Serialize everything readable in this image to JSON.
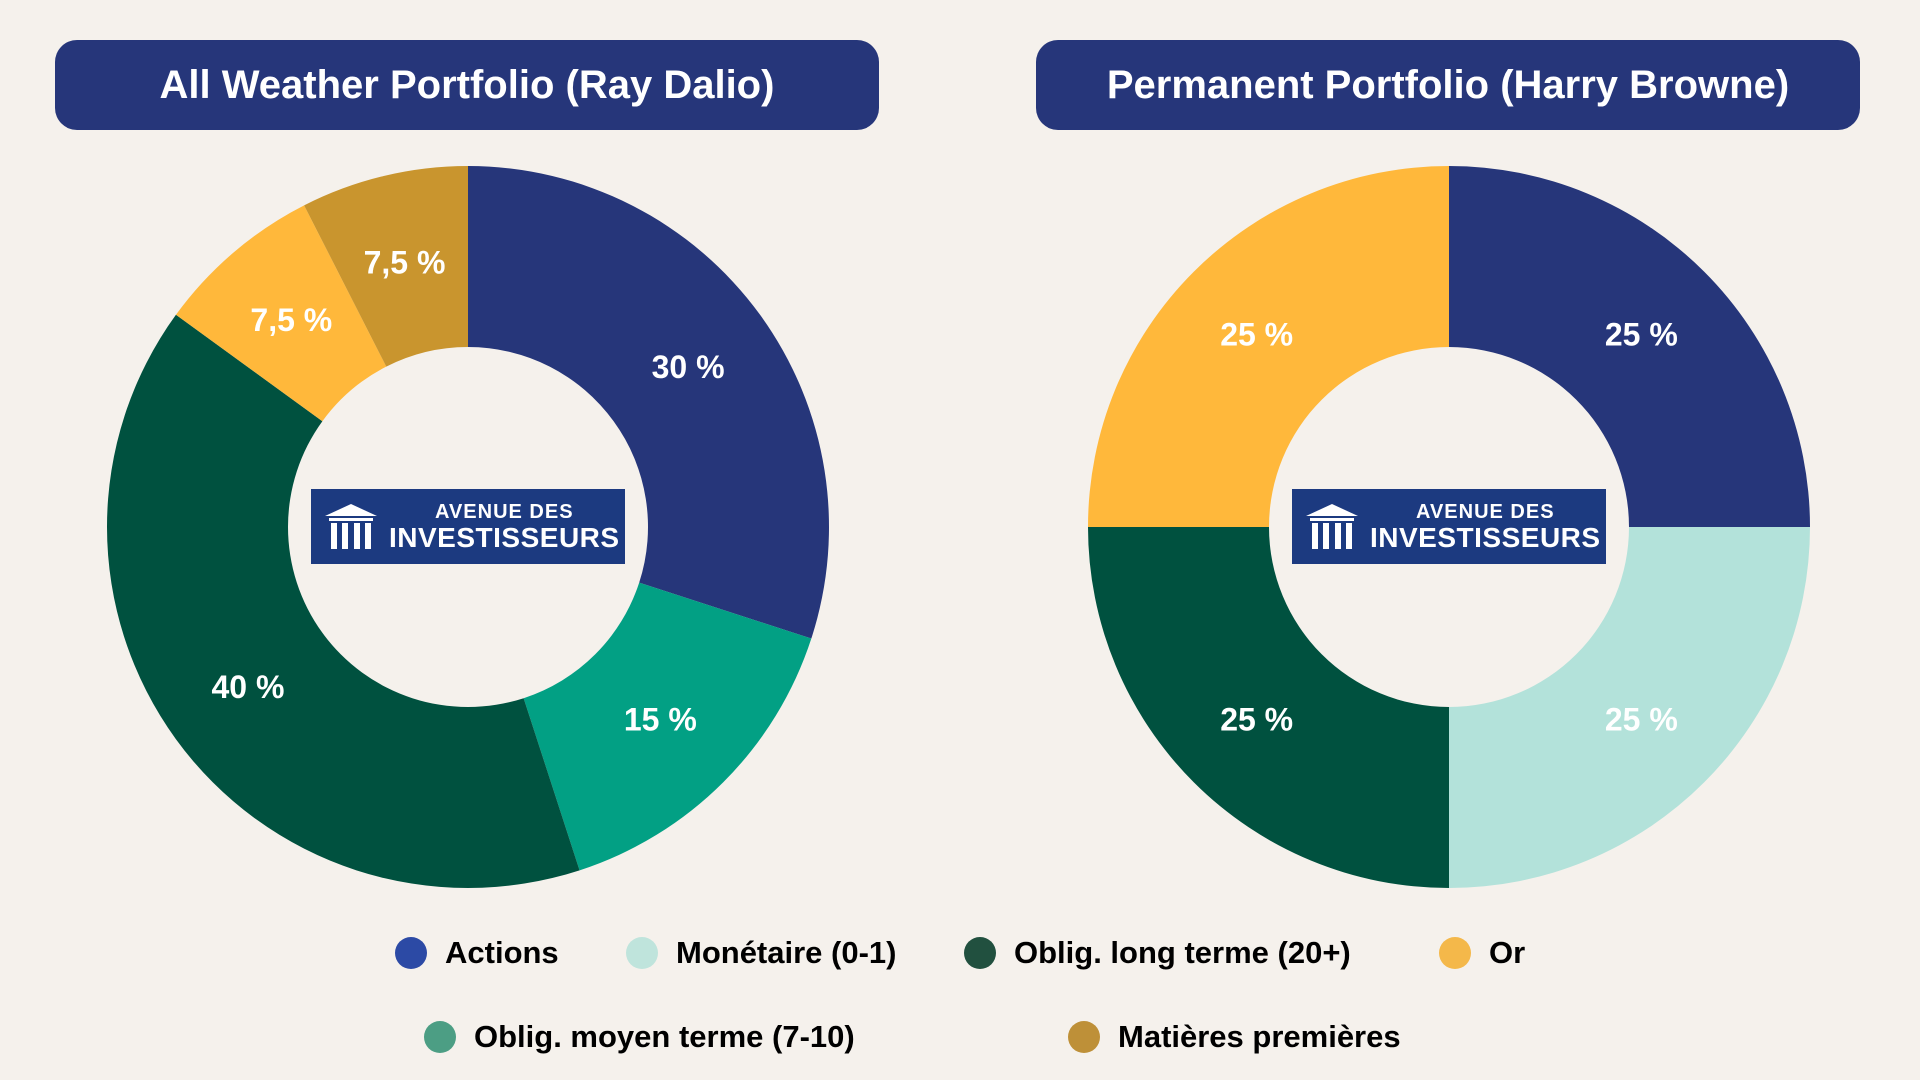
{
  "chart_data": [
    {
      "type": "pie",
      "donut": true,
      "title": "All Weather Portfolio (Ray Dalio)",
      "center_logo": "AVENUE DES INVESTISSEURS",
      "slices": [
        {
          "category": "Actions",
          "value": 30,
          "label": "30 %",
          "color": "#26367a"
        },
        {
          "category": "Oblig. moyen terme (7-10)",
          "value": 15,
          "label": "15 %",
          "color": "#02a084"
        },
        {
          "category": "Oblig. long terme (20+)",
          "value": 40,
          "label": "40 %",
          "color": "#00513f"
        },
        {
          "category": "Or",
          "value": 7.5,
          "label": "7,5 %",
          "color": "#ffb83b"
        },
        {
          "category": "Matières premières",
          "value": 7.5,
          "label": "7,5 %",
          "color": "#c9952e"
        }
      ]
    },
    {
      "type": "pie",
      "donut": true,
      "title": "Permanent Portfolio (Harry Browne)",
      "center_logo": "AVENUE DES INVESTISSEURS",
      "slices": [
        {
          "category": "Actions",
          "value": 25,
          "label": "25 %",
          "color": "#26367a"
        },
        {
          "category": "Monétaire (0-1)",
          "value": 25,
          "label": "25 %",
          "color": "#b3e2da"
        },
        {
          "category": "Oblig. long terme (20+)",
          "value": 25,
          "label": "25 %",
          "color": "#00513f"
        },
        {
          "category": "Or",
          "value": 25,
          "label": "25 %",
          "color": "#ffb83b"
        }
      ]
    }
  ],
  "logo": {
    "line1": "AVENUE DES",
    "line2": "INVESTISSEURS"
  },
  "legend": {
    "placement": "bottom",
    "items": [
      {
        "label": "Actions",
        "color": "#2c4aa5"
      },
      {
        "label": "Monétaire (0-1)",
        "color": "#bfe4dc"
      },
      {
        "label": "Oblig. long terme (20+)",
        "color": "#21503f"
      },
      {
        "label": "Or",
        "color": "#f4b84a"
      },
      {
        "label": "Oblig. moyen terme (7-10)",
        "color": "#4c9e84"
      },
      {
        "label": "Matières premières",
        "color": "#be9038"
      }
    ]
  }
}
